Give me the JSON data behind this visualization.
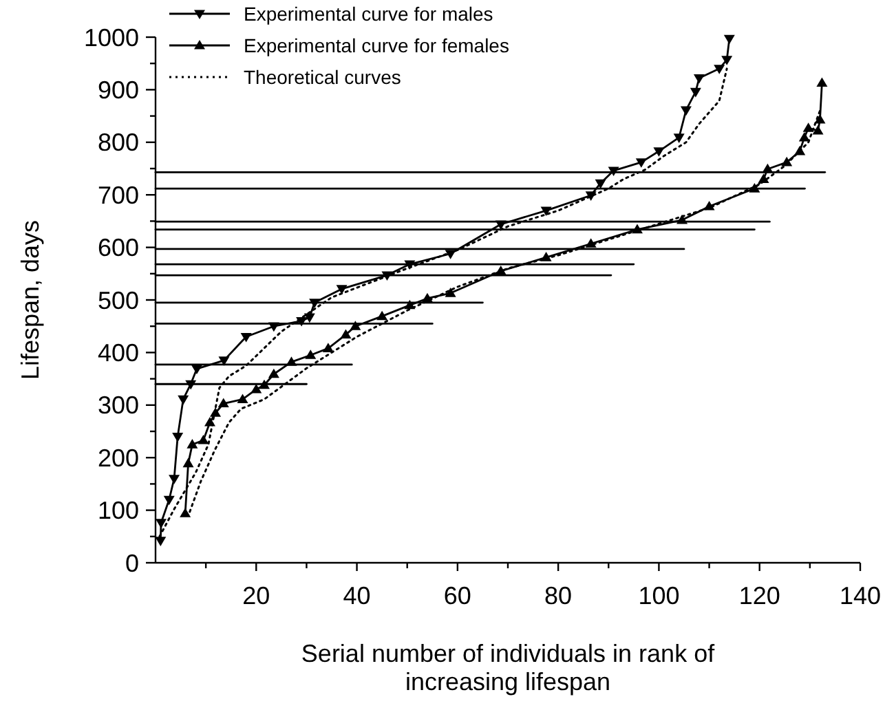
{
  "chart_data": {
    "type": "line",
    "xlabel": "Serial number of individuals in rank of increasing lifespan",
    "ylabel": "Lifespan, days",
    "xlim": [
      0,
      140
    ],
    "ylim": [
      0,
      1000
    ],
    "xticks": [
      {
        "value": 10,
        "label": null
      },
      20,
      {
        "value": 30,
        "label": null
      },
      40,
      {
        "value": 50,
        "label": null
      },
      60,
      {
        "value": 70,
        "label": null
      },
      80,
      {
        "value": 90,
        "label": null
      },
      100,
      {
        "value": 110,
        "label": null
      },
      120,
      {
        "value": 130,
        "label": null
      },
      140
    ],
    "yticks": [
      0,
      {
        "value": 50,
        "label": null
      },
      100,
      {
        "value": 150,
        "label": null
      },
      200,
      {
        "value": 250,
        "label": null
      },
      300,
      {
        "value": 350,
        "label": null
      },
      400,
      {
        "value": 450,
        "label": null
      },
      500,
      {
        "value": 550,
        "label": null
      },
      600,
      {
        "value": 650,
        "label": null
      },
      700,
      {
        "value": 750,
        "label": null
      },
      800,
      {
        "value": 850,
        "label": null
      },
      900,
      {
        "value": 950,
        "label": null
      },
      1000
    ],
    "grid": false,
    "legend": "top left",
    "series": [
      {
        "name": "Experimental curve for males",
        "color": "#000000",
        "marker": "triangle-down",
        "line_style": "solid",
        "x": [
          1,
          1.1,
          2.7,
          3.7,
          4.4,
          5.5,
          7,
          8.2,
          13.6,
          18,
          23.5,
          29,
          30.6,
          31.6,
          37,
          46,
          50.5,
          58.6,
          68.6,
          77.6,
          86.5,
          88.4,
          91,
          96.5,
          100,
          104,
          105.4,
          107.3,
          108,
          112,
          113.5,
          114
        ],
        "values": [
          42,
          76,
          120,
          160,
          240,
          311,
          340,
          369,
          385,
          430,
          450,
          460,
          467,
          495,
          521,
          547,
          568,
          588,
          644,
          670,
          699,
          722,
          746,
          762,
          783,
          809,
          861,
          896,
          922,
          940,
          957,
          997
        ]
      },
      {
        "name": "Experimental curve for females",
        "color": "#000000",
        "marker": "triangle",
        "line_style": "solid",
        "x": [
          5.9,
          6.5,
          7.3,
          9.5,
          10.8,
          11.9,
          13.5,
          17.3,
          20,
          21.6,
          23.5,
          27,
          30.8,
          34.3,
          37.8,
          39.7,
          45,
          50.5,
          54,
          58.6,
          68.6,
          77.6,
          86.5,
          95.7,
          104.6,
          110,
          119,
          120.8,
          121.6,
          125.4,
          128,
          128.9,
          129.7,
          131.6,
          132,
          132.4
        ],
        "values": [
          94,
          189,
          225,
          233,
          267,
          285,
          303,
          311,
          330,
          338,
          359,
          382,
          395,
          408,
          434,
          450,
          469,
          490,
          503,
          513,
          555,
          581,
          607,
          634,
          652,
          678,
          712,
          730,
          749,
          762,
          783,
          809,
          827,
          822,
          843,
          913
        ]
      },
      {
        "name": "Theoretical curves",
        "color": "#000000",
        "marker": "none",
        "line_style": "dotted",
        "x": [
          0.8,
          3.7,
          8,
          10.5,
          12.7,
          14.6,
          18,
          25,
          35,
          50,
          60,
          70,
          80,
          90,
          93,
          97.3,
          101,
          105.4,
          108,
          112,
          113.5,
          null,
          6.8,
          9,
          11.8,
          14.6,
          17,
          21.6,
          30,
          40,
          50,
          60,
          70,
          80,
          90,
          100,
          110,
          120,
          125,
          129.7,
          132
        ],
        "values": [
          50,
          102,
          172,
          225,
          333,
          355,
          375,
          440,
          505,
          560,
          595,
          640,
          670,
          712,
          730,
          748,
          774,
          800,
          835,
          879,
          940,
          null,
          97,
          155,
          215,
          267,
          293,
          311,
          370,
          430,
          480,
          525,
          560,
          585,
          615,
          645,
          675,
          720,
          755,
          800,
          860
        ]
      },
      {
        "color": "#000000",
        "marker": "none",
        "line_style": "solid",
        "x": [
          0,
          133
        ],
        "values": [
          743,
          743
        ]
      },
      {
        "color": "#000000",
        "marker": "none",
        "line_style": "solid",
        "x": [
          0,
          129
        ],
        "values": [
          712,
          712
        ]
      },
      {
        "color": "#000000",
        "marker": "none",
        "line_style": "solid",
        "x": [
          0,
          122
        ],
        "values": [
          649,
          649
        ]
      },
      {
        "color": "#000000",
        "marker": "none",
        "line_style": "solid",
        "x": [
          0,
          119
        ],
        "values": [
          634,
          634
        ]
      },
      {
        "color": "#000000",
        "marker": "none",
        "line_style": "solid",
        "x": [
          0,
          105
        ],
        "values": [
          597,
          597
        ]
      },
      {
        "color": "#000000",
        "marker": "none",
        "line_style": "solid",
        "x": [
          0,
          95
        ],
        "values": [
          568,
          568
        ]
      },
      {
        "color": "#000000",
        "marker": "none",
        "line_style": "solid",
        "x": [
          0,
          90.5
        ],
        "values": [
          547,
          547
        ]
      },
      {
        "color": "#000000",
        "marker": "none",
        "line_style": "solid",
        "x": [
          0,
          65
        ],
        "values": [
          495,
          495
        ]
      },
      {
        "color": "#000000",
        "marker": "none",
        "line_style": "solid",
        "x": [
          0,
          55
        ],
        "values": [
          455,
          455
        ]
      },
      {
        "color": "#000000",
        "marker": "none",
        "line_style": "solid",
        "x": [
          0,
          39
        ],
        "values": [
          377,
          377
        ]
      },
      {
        "color": "#000000",
        "marker": "none",
        "line_style": "solid",
        "x": [
          0,
          30
        ],
        "values": [
          340,
          340
        ]
      }
    ]
  }
}
